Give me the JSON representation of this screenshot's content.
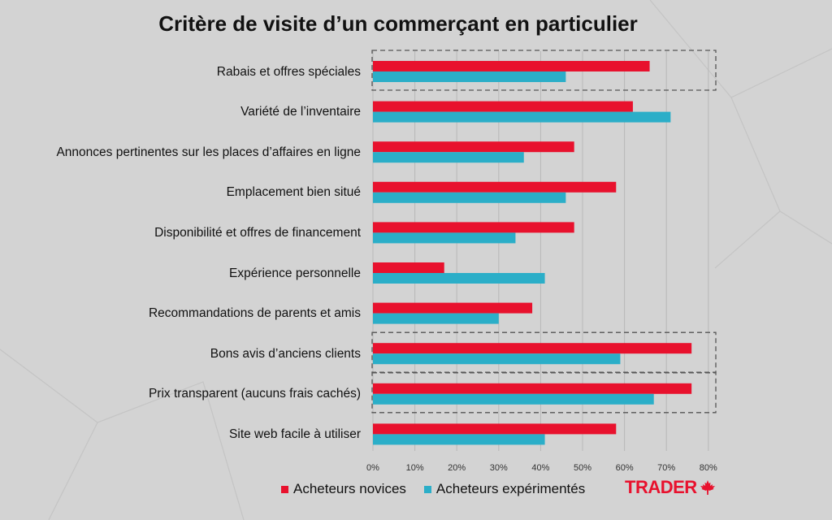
{
  "chart_data": {
    "type": "bar",
    "orientation": "horizontal",
    "title": "Critère de visite d’un commerçant en particulier",
    "categories": [
      "Rabais et offres spéciales",
      "Variété de l’inventaire",
      "Annonces pertinentes sur les places d’affaires en ligne",
      "Emplacement bien situé",
      "Disponibilité et offres de financement",
      "Expérience personnelle",
      "Recommandations de parents et amis",
      "Bons avis d’anciens clients",
      "Prix transparent (aucuns frais cachés)",
      "Site web facile à utiliser"
    ],
    "series": [
      {
        "name": "Acheteurs novices",
        "color": "#e8112d",
        "values": [
          66,
          62,
          48,
          58,
          48,
          17,
          38,
          76,
          76,
          58
        ]
      },
      {
        "name": "Acheteurs expérimentés",
        "color": "#2baec8",
        "values": [
          46,
          71,
          36,
          46,
          34,
          41,
          30,
          59,
          67,
          41
        ]
      }
    ],
    "xlim": [
      0,
      80
    ],
    "xticks": [
      "0%",
      "10%",
      "20%",
      "30%",
      "40%",
      "50%",
      "60%",
      "70%",
      "80%"
    ],
    "highlighted_categories": [
      0,
      7,
      8
    ],
    "grid": true,
    "legend_position": "bottom"
  },
  "logo": {
    "text": "TRADER",
    "icon": "maple-leaf-icon"
  }
}
